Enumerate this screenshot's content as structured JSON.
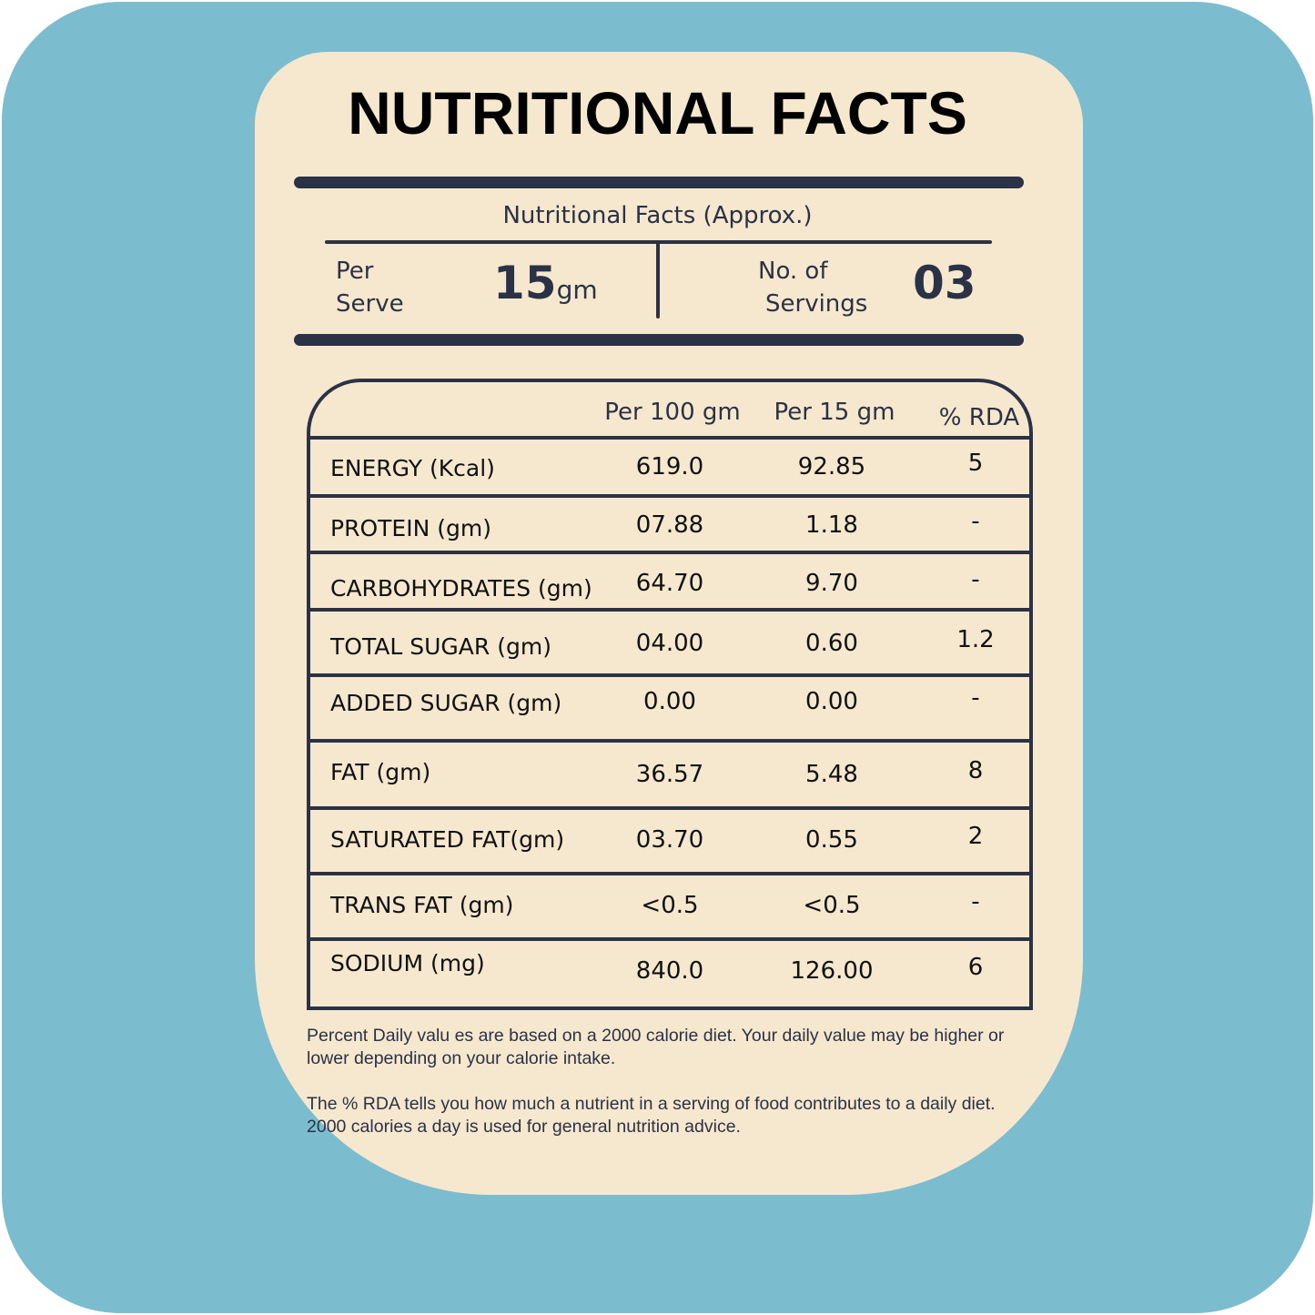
{
  "colors": {
    "background": "#7bbccf",
    "card": "#f6e7cf",
    "ink": "#2b3245"
  },
  "title": "NUTRITIONAL FACTS",
  "subtitle": "Nutritional Facts (Approx.)",
  "serve": {
    "label_line1": "Per",
    "label_line2": "Serve",
    "value": "15",
    "unit": "gm"
  },
  "servings": {
    "label_line1": "No. of",
    "label_line2": "Servings",
    "value": "03"
  },
  "table": {
    "headers": [
      "Per 100 gm",
      "Per 15 gm",
      "% RDA"
    ],
    "rows": [
      {
        "name": "ENERGY (Kcal)",
        "per100": "619.0",
        "per15": "92.85",
        "rda": "5"
      },
      {
        "name": "PROTEIN (gm)",
        "per100": "07.88",
        "per15": "1.18",
        "rda": "-"
      },
      {
        "name": "CARBOHYDRATES (gm)",
        "per100": "64.70",
        "per15": "9.70",
        "rda": "-"
      },
      {
        "name": "TOTAL SUGAR (gm)",
        "per100": "04.00",
        "per15": "0.60",
        "rda": "1.2"
      },
      {
        "name": "ADDED SUGAR (gm)",
        "per100": "0.00",
        "per15": "0.00",
        "rda": "-"
      },
      {
        "name": "FAT (gm)",
        "per100": "36.57",
        "per15": "5.48",
        "rda": "8"
      },
      {
        "name": "SATURATED FAT(gm)",
        "per100": "03.70",
        "per15": "0.55",
        "rda": "2"
      },
      {
        "name": "TRANS FAT (gm)",
        "per100": "<0.5",
        "per15": "<0.5",
        "rda": "-"
      },
      {
        "name": "SODIUM (mg)",
        "per100": "840.0",
        "per15": "126.00",
        "rda": "6"
      }
    ]
  },
  "notes": [
    "Percent Daily valu es are based on a 2000 calorie diet. Your daily value may be higher or lower depending on your calorie intake.",
    "The % RDA tells you how much a nutrient in a serving of food contributes to a daily diet. 2000 calories a day is used for general nutrition advice."
  ]
}
